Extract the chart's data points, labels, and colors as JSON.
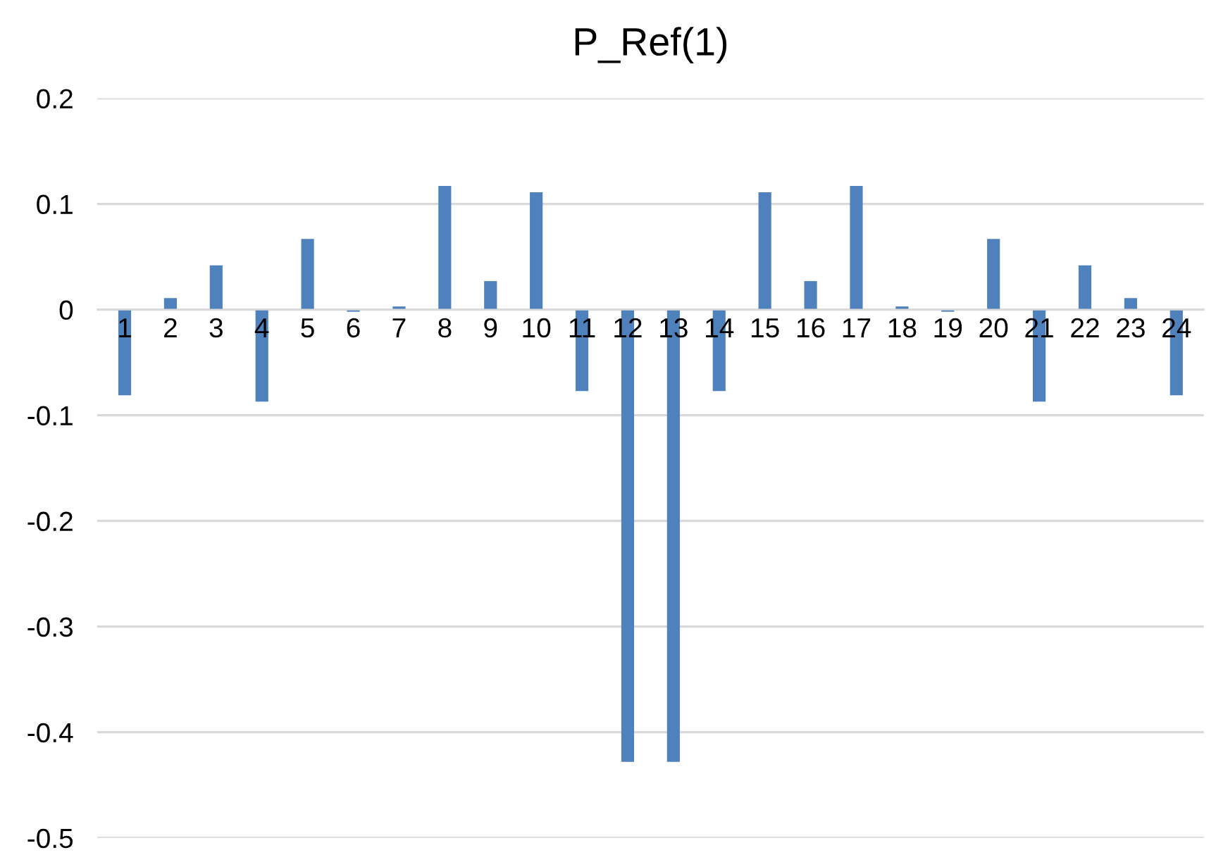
{
  "chart_data": {
    "type": "bar",
    "title": "P_Ref(1)",
    "categories": [
      "1",
      "2",
      "3",
      "4",
      "5",
      "6",
      "7",
      "8",
      "9",
      "10",
      "11",
      "12",
      "13",
      "14",
      "15",
      "16",
      "17",
      "18",
      "19",
      "20",
      "21",
      "22",
      "23",
      "24"
    ],
    "values": [
      -0.081,
      0.011,
      0.042,
      -0.087,
      0.067,
      -0.002,
      0.003,
      0.117,
      0.027,
      0.111,
      -0.077,
      -0.428,
      -0.428,
      -0.077,
      0.111,
      0.027,
      0.117,
      0.003,
      -0.002,
      0.067,
      -0.087,
      0.042,
      0.011,
      -0.081
    ],
    "color": "#4f81bd",
    "ylim": [
      -0.5,
      0.2
    ],
    "yticks": [
      {
        "value": -0.5,
        "label": "-0.5"
      },
      {
        "value": -0.4,
        "label": "-0.4"
      },
      {
        "value": -0.3,
        "label": "-0.3"
      },
      {
        "value": -0.2,
        "label": "-0.2"
      },
      {
        "value": -0.1,
        "label": "-0.1"
      },
      0,
      0.1,
      0.2
    ],
    "grid": "y"
  }
}
